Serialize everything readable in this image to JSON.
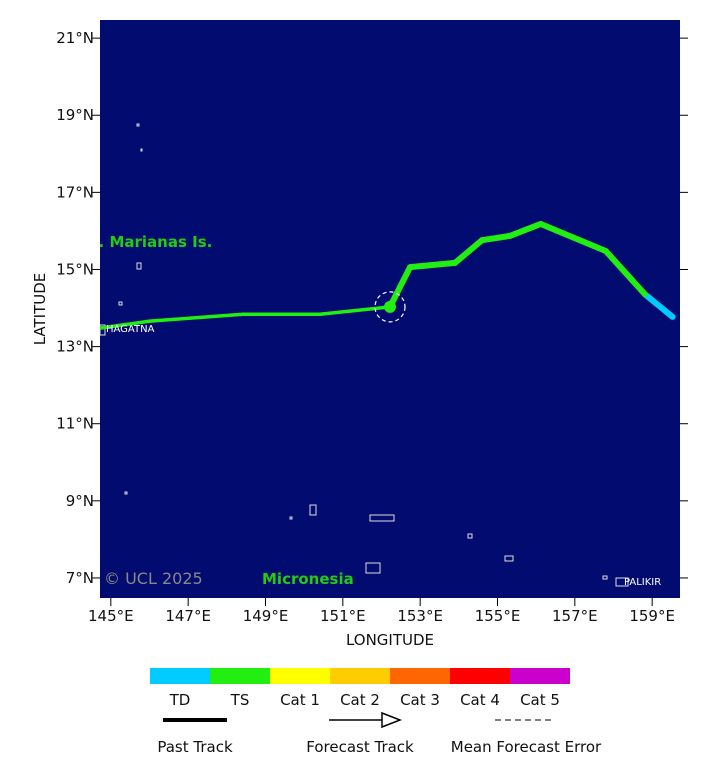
{
  "chart_data": {
    "type": "track",
    "xlabel": "LONGITUDE",
    "ylabel": "LATITUDE",
    "xlim": [
      144.72,
      159.72
    ],
    "ylim": [
      6.48,
      21.47
    ],
    "xticks": [
      {
        "value": 145,
        "label": "145°E"
      },
      {
        "value": 147,
        "label": "147°E"
      },
      {
        "value": 149,
        "label": "149°E"
      },
      {
        "value": 151,
        "label": "151°E"
      },
      {
        "value": 153,
        "label": "153°E"
      },
      {
        "value": 155,
        "label": "155°E"
      },
      {
        "value": 157,
        "label": "157°E"
      },
      {
        "value": 159,
        "label": "159°E"
      }
    ],
    "yticks": [
      {
        "value": 7,
        "label": "7°N"
      },
      {
        "value": 9,
        "label": "9°N"
      },
      {
        "value": 11,
        "label": "11°N"
      },
      {
        "value": 13,
        "label": "13°N"
      },
      {
        "value": 15,
        "label": "15°N"
      },
      {
        "value": 17,
        "label": "17°N"
      },
      {
        "value": 19,
        "label": "19°N"
      },
      {
        "value": 21,
        "label": "21°N"
      }
    ],
    "background": "#020b6f",
    "categories": [
      {
        "name": "TD",
        "color": "#00ccff"
      },
      {
        "name": "TS",
        "color": "#22ee11"
      },
      {
        "name": "Cat 1",
        "color": "#ffff00"
      },
      {
        "name": "Cat 2",
        "color": "#ffcc00"
      },
      {
        "name": "Cat 3",
        "color": "#ff6600"
      },
      {
        "name": "Cat 4",
        "color": "#ff0000"
      },
      {
        "name": "Cat 5",
        "color": "#cc00cc"
      }
    ],
    "past_track": {
      "name": "Past Track",
      "lon": [
        159.53,
        158.81,
        157.8,
        156.12,
        155.32,
        154.6,
        153.9,
        152.74,
        152.22
      ],
      "lat": [
        13.77,
        14.36,
        15.48,
        16.18,
        15.87,
        15.76,
        15.17,
        15.06,
        14.03
      ],
      "category": [
        "TD",
        "TS",
        "TS",
        "TS",
        "TS",
        "TS",
        "TS",
        "TS",
        "TS"
      ]
    },
    "forecast_track": {
      "name": "Forecast Track",
      "color": "#22ee11",
      "lon": [
        152.22,
        150.41,
        148.42,
        146.01,
        144.72
      ],
      "lat": [
        14.03,
        13.84,
        13.84,
        13.66,
        13.48
      ]
    },
    "current_position": {
      "lon": 152.22,
      "lat": 14.03
    },
    "error_legend": "Mean Forecast Error",
    "annotations": [
      "N. Marianas Is.",
      "HAGATNA",
      "PALIKIR",
      "© UCL 2025",
      "Micronesia"
    ]
  }
}
